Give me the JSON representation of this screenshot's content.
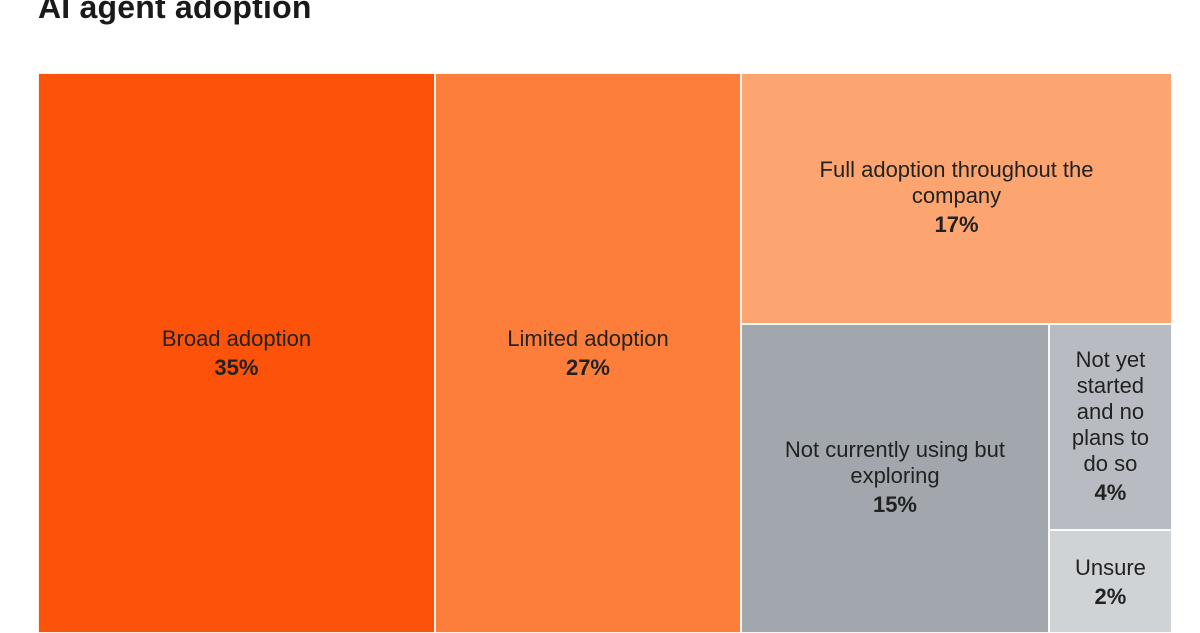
{
  "header": {
    "title": "AI agent adoption"
  },
  "colors": {
    "broad": "#fd5209",
    "limited": "#fd7d3a",
    "full": "#fda571",
    "exploring": "#a2a7ae",
    "not_started": "#b8bcc2",
    "unsure": "#d0d3d6"
  },
  "chart_data": {
    "type": "treemap",
    "title": "AI agent adoption",
    "unit": "%",
    "items": [
      {
        "label": "Broad adoption",
        "value": 35,
        "display": "35%"
      },
      {
        "label": "Limited adoption",
        "value": 27,
        "display": "27%"
      },
      {
        "label": "Full adoption throughout the company",
        "value": 17,
        "display": "17%"
      },
      {
        "label": "Not currently using but exploring",
        "value": 15,
        "display": "15%"
      },
      {
        "label": "Not yet started and no plans to do so",
        "value": 4,
        "display": "4%"
      },
      {
        "label": "Unsure",
        "value": 2,
        "display": "2%"
      }
    ]
  }
}
